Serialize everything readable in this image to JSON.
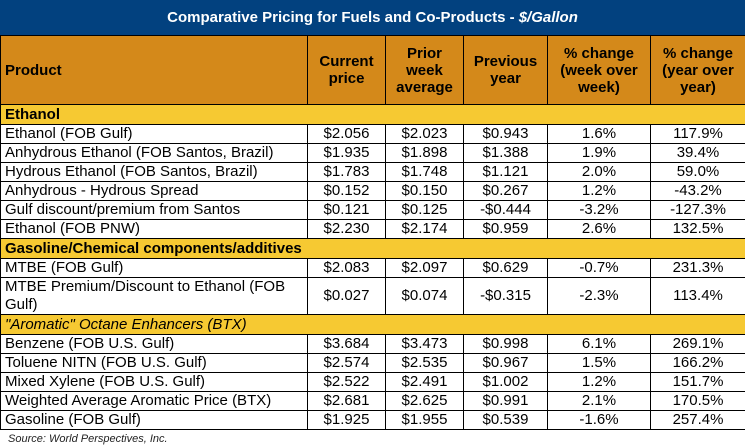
{
  "title": {
    "main": "Comparative Pricing for Fuels and Co-Products - ",
    "unit": "$/Gallon"
  },
  "colors": {
    "title_bg": "#02417f",
    "header_bg": "#d4891a",
    "section_bg": "#f6c932"
  },
  "columns": [
    "Product",
    "Current price",
    "Prior week average",
    "Previous year",
    "% change (week over week)",
    "% change (year over year)"
  ],
  "sections": [
    {
      "name": "Ethanol",
      "italic": false,
      "rows": [
        [
          "Ethanol (FOB Gulf)",
          "$2.056",
          "$2.023",
          "$0.943",
          "1.6%",
          "117.9%"
        ],
        [
          "Anhydrous Ethanol (FOB Santos, Brazil)",
          "$1.935",
          "$1.898",
          "$1.388",
          "1.9%",
          "39.4%"
        ],
        [
          "Hydrous Ethanol (FOB Santos, Brazil)",
          "$1.783",
          "$1.748",
          "$1.121",
          "2.0%",
          "59.0%"
        ],
        [
          "Anhydrous - Hydrous Spread",
          "$0.152",
          "$0.150",
          "$0.267",
          "1.2%",
          "-43.2%"
        ],
        [
          "Gulf discount/premium from Santos",
          "$0.121",
          "$0.125",
          "-$0.444",
          "-3.2%",
          "-127.3%"
        ],
        [
          "Ethanol (FOB PNW)",
          "$2.230",
          "$2.174",
          "$0.959",
          "2.6%",
          "132.5%"
        ]
      ]
    },
    {
      "name": "Gasoline/Chemical components/additives",
      "italic": false,
      "rows": [
        [
          "MTBE (FOB Gulf)",
          "$2.083",
          "$2.097",
          "$0.629",
          "-0.7%",
          "231.3%"
        ],
        [
          "MTBE Premium/Discount to Ethanol (FOB Gulf)",
          "$0.027",
          "$0.074",
          "-$0.315",
          "-2.3%",
          "113.4%"
        ]
      ]
    },
    {
      "name": "\"Aromatic\" Octane Enhancers (BTX)",
      "italic": true,
      "rows": [
        [
          "Benzene (FOB U.S. Gulf)",
          "$3.684",
          "$3.473",
          "$0.998",
          "6.1%",
          "269.1%"
        ],
        [
          "Toluene NITN (FOB U.S. Gulf)",
          "$2.574",
          "$2.535",
          "$0.967",
          "1.5%",
          "166.2%"
        ],
        [
          "Mixed Xylene (FOB U.S. Gulf)",
          "$2.522",
          "$2.491",
          "$1.002",
          "1.2%",
          "151.7%"
        ],
        [
          "Weighted Average Aromatic Price (BTX)",
          "$2.681",
          "$2.625",
          "$0.991",
          "2.1%",
          "170.5%"
        ],
        [
          "Gasoline (FOB Gulf)",
          "$1.925",
          "$1.955",
          "$0.539",
          "-1.6%",
          "257.4%"
        ]
      ]
    }
  ],
  "source": "Source: World Perspectives, Inc."
}
